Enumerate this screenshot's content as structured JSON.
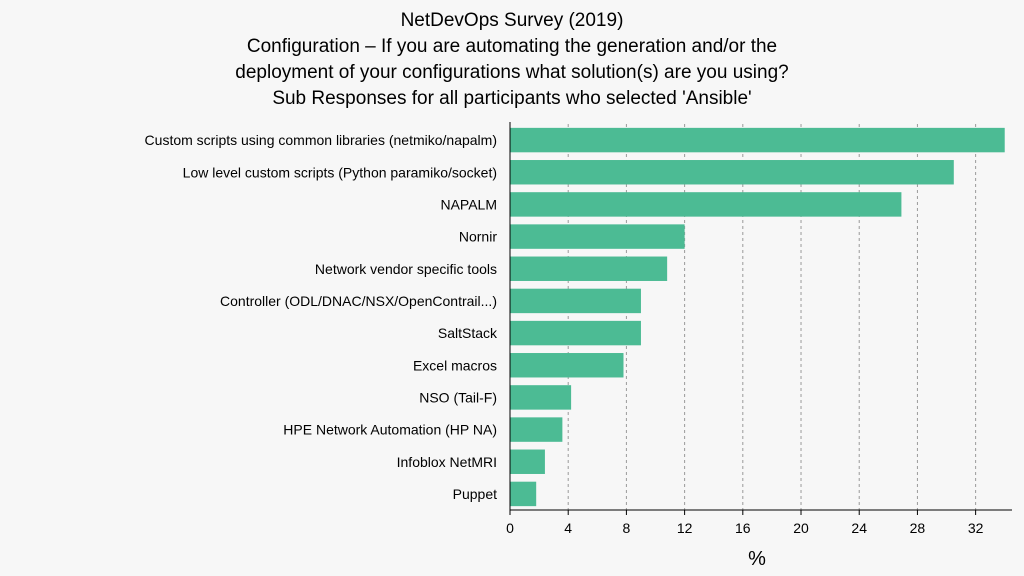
{
  "chart_data": {
    "type": "bar",
    "orientation": "horizontal",
    "title": "NetDevOps Survey (2019)",
    "subtitle_lines": [
      "Configuration – If you are automating the generation and/or the",
      "deployment of your configurations what solution(s) are you using?",
      "Sub Responses for all participants who selected 'Ansible'"
    ],
    "xlabel": "%",
    "ylabel": "",
    "xlim": [
      0,
      34.5
    ],
    "xticks": [
      0,
      4,
      8,
      12,
      16,
      20,
      24,
      28,
      32
    ],
    "grid": "vertical-dashed",
    "bar_color": "#4cbb94",
    "categories": [
      "Custom scripts using common libraries (netmiko/napalm)",
      "Low level custom scripts (Python paramiko/socket)",
      "NAPALM",
      "Nornir",
      "Network vendor specific tools",
      "Controller (ODL/DNAC/NSX/OpenContrail...)",
      "SaltStack",
      "Excel macros",
      "NSO (Tail-F)",
      "HPE Network Automation (HP NA)",
      "Infoblox NetMRI",
      "Puppet"
    ],
    "values": [
      34.0,
      30.5,
      26.9,
      12.0,
      10.8,
      9.0,
      9.0,
      7.8,
      4.2,
      3.6,
      2.4,
      1.8
    ]
  }
}
